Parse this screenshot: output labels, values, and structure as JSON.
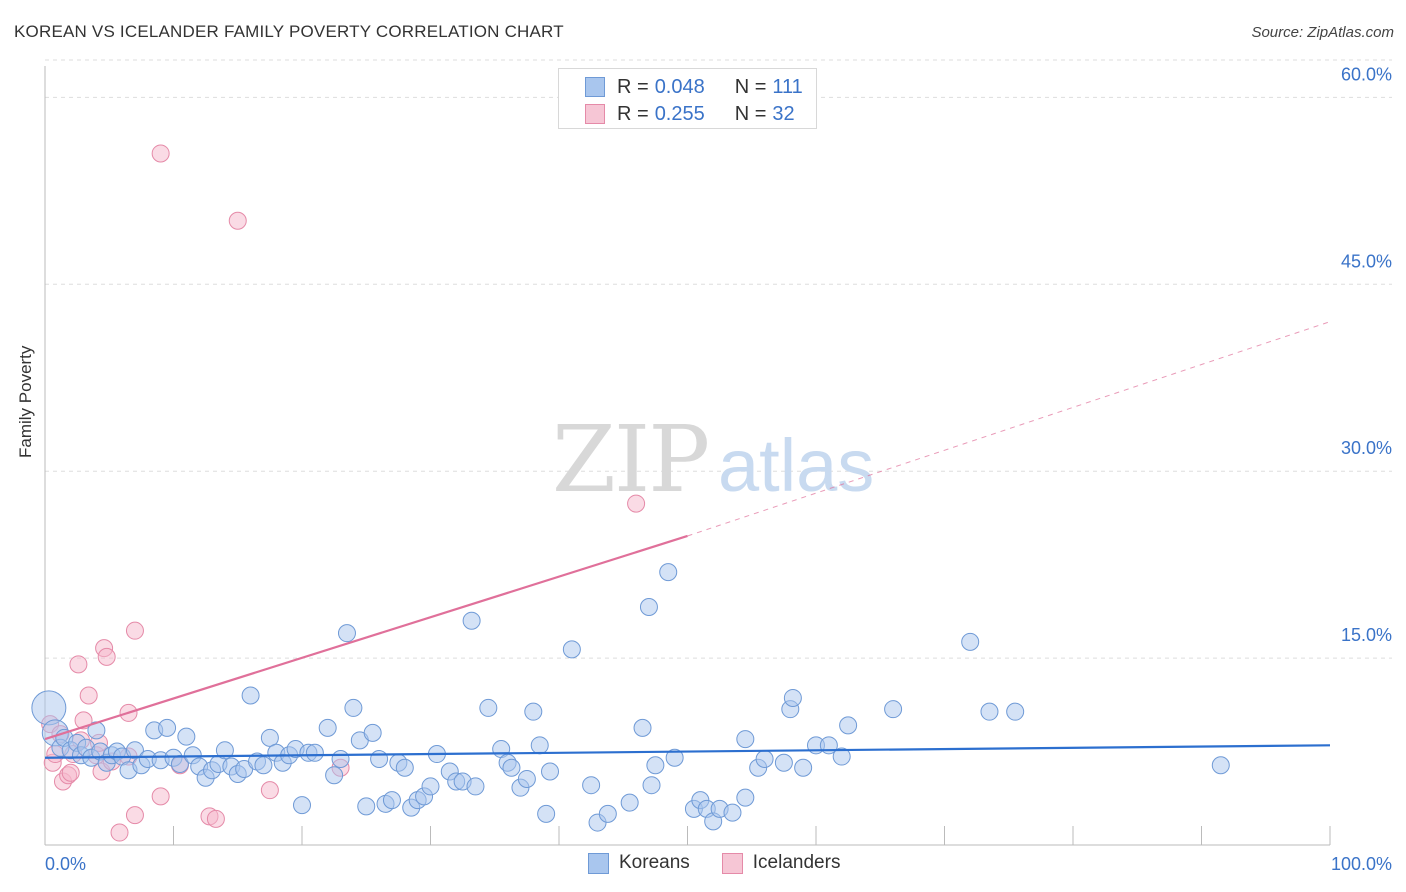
{
  "header": {
    "title": "KOREAN VS ICELANDER FAMILY POVERTY CORRELATION CHART",
    "source": "Source: ZipAtlas.com"
  },
  "legend": {
    "rows": [
      {
        "r_label": "R =",
        "r_value": "0.048",
        "n_label": "N =",
        "n_value": "111"
      },
      {
        "r_label": "R =",
        "r_value": "0.255",
        "n_label": "N =",
        "n_value": "32"
      }
    ]
  },
  "bottom_legend": {
    "koreans": "Koreans",
    "icelanders": "Icelanders"
  },
  "watermark": {
    "zip": "ZIP",
    "atlas": "atlas"
  },
  "colors": {
    "korean_fill": "#a9c6ee",
    "korean_stroke": "#6f9ad6",
    "korean_line": "#2c6fcf",
    "icelander_fill": "#f6b8cb",
    "icelander_stroke": "#e58aa8",
    "icelander_line": "#e0709a",
    "axis_text": "#3a73c8",
    "grid": "#dddddd"
  },
  "chart_data": {
    "type": "scatter",
    "title": "KOREAN VS ICELANDER FAMILY POVERTY CORRELATION CHART",
    "xlabel": "",
    "ylabel": "Family Poverty",
    "xlim": [
      0,
      100
    ],
    "ylim": [
      0,
      63
    ],
    "x_tick_labels": [
      "0.0%",
      "100.0%"
    ],
    "y_ticks": [
      15,
      30,
      45,
      60
    ],
    "y_tick_labels": [
      "15.0%",
      "30.0%",
      "45.0%",
      "60.0%"
    ],
    "series": [
      {
        "name": "Koreans",
        "r": 0.048,
        "n": 111,
        "trend": {
          "x0": 0,
          "y0": 7.0,
          "x1": 100,
          "y1": 8.0
        },
        "points": [
          [
            0.3,
            11.0
          ],
          [
            0.8,
            9.0
          ],
          [
            1.2,
            7.8
          ],
          [
            1.5,
            8.6
          ],
          [
            2.0,
            7.6
          ],
          [
            2.5,
            8.2
          ],
          [
            2.8,
            7.2
          ],
          [
            3.2,
            7.8
          ],
          [
            3.6,
            7.0
          ],
          [
            4.0,
            9.2
          ],
          [
            4.3,
            7.5
          ],
          [
            4.8,
            6.6
          ],
          [
            5.2,
            7.2
          ],
          [
            5.6,
            7.5
          ],
          [
            6.0,
            7.1
          ],
          [
            6.5,
            6.0
          ],
          [
            7.0,
            7.6
          ],
          [
            7.5,
            6.4
          ],
          [
            8.0,
            6.9
          ],
          [
            8.5,
            9.2
          ],
          [
            9.0,
            6.8
          ],
          [
            9.5,
            9.4
          ],
          [
            10.0,
            7.0
          ],
          [
            10.5,
            6.5
          ],
          [
            11.0,
            8.7
          ],
          [
            11.5,
            7.2
          ],
          [
            12.0,
            6.3
          ],
          [
            12.5,
            5.4
          ],
          [
            13.0,
            6.0
          ],
          [
            13.5,
            6.5
          ],
          [
            14.0,
            7.6
          ],
          [
            14.5,
            6.3
          ],
          [
            15.0,
            5.7
          ],
          [
            15.5,
            6.1
          ],
          [
            16.0,
            12.0
          ],
          [
            16.5,
            6.7
          ],
          [
            17.0,
            6.4
          ],
          [
            17.5,
            8.6
          ],
          [
            18.0,
            7.4
          ],
          [
            18.5,
            6.6
          ],
          [
            19.0,
            7.2
          ],
          [
            19.5,
            7.7
          ],
          [
            20.0,
            3.2
          ],
          [
            20.5,
            7.4
          ],
          [
            21.0,
            7.4
          ],
          [
            22.0,
            9.4
          ],
          [
            22.5,
            5.6
          ],
          [
            23.0,
            6.9
          ],
          [
            23.5,
            17.0
          ],
          [
            24.0,
            11.0
          ],
          [
            24.5,
            8.4
          ],
          [
            25.0,
            3.1
          ],
          [
            25.5,
            9.0
          ],
          [
            26.0,
            6.9
          ],
          [
            26.5,
            3.3
          ],
          [
            27.0,
            3.6
          ],
          [
            27.5,
            6.6
          ],
          [
            28.0,
            6.2
          ],
          [
            28.5,
            3.0
          ],
          [
            29.0,
            3.6
          ],
          [
            29.5,
            3.9
          ],
          [
            30.0,
            4.7
          ],
          [
            30.5,
            7.3
          ],
          [
            31.5,
            5.9
          ],
          [
            32.0,
            5.1
          ],
          [
            32.5,
            5.1
          ],
          [
            33.5,
            4.7
          ],
          [
            33.2,
            18.0
          ],
          [
            34.5,
            11.0
          ],
          [
            35.5,
            7.7
          ],
          [
            36.0,
            6.6
          ],
          [
            36.3,
            6.2
          ],
          [
            37.0,
            4.6
          ],
          [
            37.5,
            5.3
          ],
          [
            38.0,
            10.7
          ],
          [
            38.5,
            8.0
          ],
          [
            39.0,
            2.5
          ],
          [
            39.3,
            5.9
          ],
          [
            41.0,
            15.7
          ],
          [
            42.5,
            4.8
          ],
          [
            43.0,
            1.8
          ],
          [
            43.8,
            2.5
          ],
          [
            45.5,
            3.4
          ],
          [
            46.5,
            9.4
          ],
          [
            47.2,
            4.8
          ],
          [
            47.5,
            6.4
          ],
          [
            47.0,
            19.1
          ],
          [
            48.5,
            21.9
          ],
          [
            49.0,
            7.0
          ],
          [
            50.5,
            2.9
          ],
          [
            51.0,
            3.6
          ],
          [
            51.5,
            2.9
          ],
          [
            52.0,
            1.9
          ],
          [
            52.5,
            2.9
          ],
          [
            53.5,
            2.6
          ],
          [
            54.5,
            8.5
          ],
          [
            54.5,
            3.8
          ],
          [
            55.5,
            6.2
          ],
          [
            56.0,
            6.9
          ],
          [
            57.5,
            6.6
          ],
          [
            58.0,
            10.9
          ],
          [
            58.2,
            11.8
          ],
          [
            59.0,
            6.2
          ],
          [
            60.0,
            8.0
          ],
          [
            61.0,
            8.0
          ],
          [
            62.0,
            7.1
          ],
          [
            62.5,
            9.6
          ],
          [
            66.0,
            10.9
          ],
          [
            72.0,
            16.3
          ],
          [
            73.5,
            10.7
          ],
          [
            75.5,
            10.7
          ],
          [
            91.5,
            6.4
          ]
        ]
      },
      {
        "name": "Icelanders",
        "r": 0.255,
        "n": 32,
        "trend": {
          "x0": 0,
          "y0": 8.5,
          "x1": 50,
          "y1": 24.8
        },
        "trend_dashed": {
          "x0": 50,
          "y0": 24.8,
          "x1": 100,
          "y1": 42.0
        },
        "points": [
          [
            0.4,
            9.7
          ],
          [
            0.6,
            6.6
          ],
          [
            0.8,
            7.3
          ],
          [
            1.2,
            8.9
          ],
          [
            1.4,
            5.1
          ],
          [
            1.8,
            5.6
          ],
          [
            2.0,
            5.8
          ],
          [
            2.2,
            7.3
          ],
          [
            2.6,
            14.5
          ],
          [
            2.8,
            8.4
          ],
          [
            3.0,
            10.0
          ],
          [
            3.4,
            12.0
          ],
          [
            4.0,
            7.2
          ],
          [
            4.2,
            8.2
          ],
          [
            4.4,
            5.9
          ],
          [
            4.6,
            15.8
          ],
          [
            4.8,
            15.1
          ],
          [
            5.2,
            6.7
          ],
          [
            5.8,
            1.0
          ],
          [
            6.5,
            7.1
          ],
          [
            6.5,
            10.6
          ],
          [
            7.0,
            2.4
          ],
          [
            7.0,
            17.2
          ],
          [
            9.0,
            3.9
          ],
          [
            10.5,
            6.4
          ],
          [
            12.8,
            2.3
          ],
          [
            13.3,
            2.1
          ],
          [
            15.0,
            50.1
          ],
          [
            17.5,
            4.4
          ],
          [
            23.0,
            6.2
          ],
          [
            9.0,
            55.5
          ],
          [
            46.0,
            27.4
          ]
        ]
      }
    ]
  }
}
